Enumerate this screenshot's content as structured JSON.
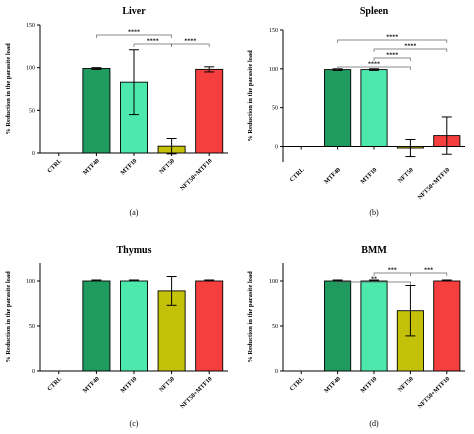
{
  "figure": {
    "ylabel": "% Reduction in the parasite load",
    "categories": [
      "CTRL",
      "MTF40",
      "MTF10",
      "NFT50",
      "NFT50+MTF10"
    ],
    "colors": {
      "MTF40": "#1f9b5f",
      "MTF10": "#4de8ac",
      "NFT50": "#c4c10a",
      "NFT50+MTF10": "#f53f3f"
    }
  },
  "chart_data": [
    {
      "type": "bar",
      "title": "Liver",
      "panel_label": "(a)",
      "ylabel": "% Reduction in the parasite load",
      "categories": [
        "CTRL",
        "MTF40",
        "MTF10",
        "NFT50",
        "NFT50+MTF10"
      ],
      "values": [
        0,
        99,
        83,
        8,
        98
      ],
      "errors": [
        0,
        1,
        38,
        9,
        3
      ],
      "ylim": [
        0,
        150
      ],
      "yticks": [
        "0",
        "50",
        "100",
        "150"
      ],
      "significance": [
        {
          "from": 1,
          "to": 3,
          "label": "****",
          "level": 2
        },
        {
          "from": 2,
          "to": 3,
          "label": "****",
          "level": 1
        },
        {
          "from": 3,
          "to": 4,
          "label": "****",
          "level": 1
        }
      ]
    },
    {
      "type": "bar",
      "title": "Spleen",
      "panel_label": "(b)",
      "ylabel": "% Reduction in the parasite load",
      "categories": [
        "CTRL",
        "MTF40",
        "MTF10",
        "NFT50",
        "NFT50+MTF10"
      ],
      "values": [
        0,
        99,
        99,
        -2,
        14
      ],
      "errors": [
        0,
        1,
        1,
        11,
        24
      ],
      "ylim": [
        -20,
        150
      ],
      "yticks": [
        "0",
        "50",
        "100",
        "150"
      ],
      "significance": [
        {
          "from": 1,
          "to": 3,
          "label": "****",
          "level": 1
        },
        {
          "from": 2,
          "to": 3,
          "label": "****",
          "level": 2
        },
        {
          "from": 2,
          "to": 4,
          "label": "****",
          "level": 3
        },
        {
          "from": 1,
          "to": 4,
          "label": "****",
          "level": 4
        }
      ]
    },
    {
      "type": "bar",
      "title": "Thymus",
      "panel_label": "(c)",
      "ylabel": "% Reduction in the parasite load",
      "categories": [
        "CTRL",
        "MTF40",
        "MTF10",
        "NFT50",
        "NFT50+MTF10"
      ],
      "values": [
        0,
        100,
        100,
        89,
        100
      ],
      "errors": [
        0,
        0,
        0,
        16,
        0
      ],
      "ylim": [
        0,
        120
      ],
      "yticks": [
        "0",
        "50",
        "100"
      ],
      "significance": []
    },
    {
      "type": "bar",
      "title": "BMM",
      "panel_label": "(d)",
      "ylabel": "% Reduction in the parasite load",
      "categories": [
        "CTRL",
        "MTF40",
        "MTF10",
        "NFT50",
        "NFT50+MTF10"
      ],
      "values": [
        0,
        100,
        100,
        67,
        100
      ],
      "errors": [
        0,
        0,
        0,
        28,
        0
      ],
      "ylim": [
        0,
        120
      ],
      "yticks": [
        "0",
        "50",
        "100"
      ],
      "significance": [
        {
          "from": 1,
          "to": 3,
          "label": "**",
          "level": 1
        },
        {
          "from": 2,
          "to": 3,
          "label": "***",
          "level": 2
        },
        {
          "from": 3,
          "to": 4,
          "label": "***",
          "level": 2
        }
      ]
    }
  ]
}
